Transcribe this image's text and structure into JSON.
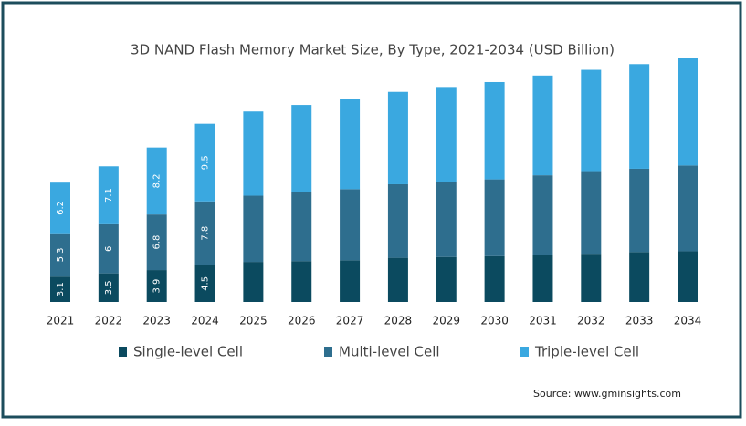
{
  "chart_data": {
    "type": "stacked-bar",
    "title": "3D NAND Flash Memory Market Size, By Type, 2021-2034 (USD Billion)",
    "categories": [
      "2021",
      "2022",
      "2023",
      "2024",
      "2025",
      "2026",
      "2027",
      "2028",
      "2029",
      "2030",
      "2031",
      "2032",
      "2033",
      "2034"
    ],
    "series": [
      {
        "name": "Single-level Cell",
        "color": "#0b4a5f",
        "values": [
          3.1,
          3.5,
          3.9,
          4.5,
          4.9,
          5.0,
          5.1,
          5.4,
          5.5,
          5.6,
          5.8,
          5.9,
          6.1,
          6.2
        ],
        "value_labels": [
          "3.1",
          "3.5",
          "3.9",
          "4.5",
          null,
          null,
          null,
          null,
          null,
          null,
          null,
          null,
          null,
          null
        ]
      },
      {
        "name": "Multi-level Cell",
        "color": "#2e6e8e",
        "values": [
          5.3,
          6,
          6.8,
          7.8,
          8.1,
          8.5,
          8.7,
          9.0,
          9.2,
          9.4,
          9.7,
          10.0,
          10.2,
          10.5
        ],
        "value_labels": [
          "5.3",
          "6",
          "6.8",
          "7.8",
          null,
          null,
          null,
          null,
          null,
          null,
          null,
          null,
          null,
          null
        ]
      },
      {
        "name": "Triple-level Cell",
        "color": "#3aa8e0",
        "values": [
          6.2,
          7.1,
          8.2,
          9.5,
          10.3,
          10.6,
          11.0,
          11.3,
          11.6,
          11.9,
          12.2,
          12.5,
          12.8,
          13.1
        ],
        "value_labels": [
          "6.2",
          "7.1",
          "8.2",
          "9.5",
          null,
          null,
          null,
          null,
          null,
          null,
          null,
          null,
          null,
          null
        ]
      }
    ],
    "source": "Source: www.gminsights.com"
  }
}
